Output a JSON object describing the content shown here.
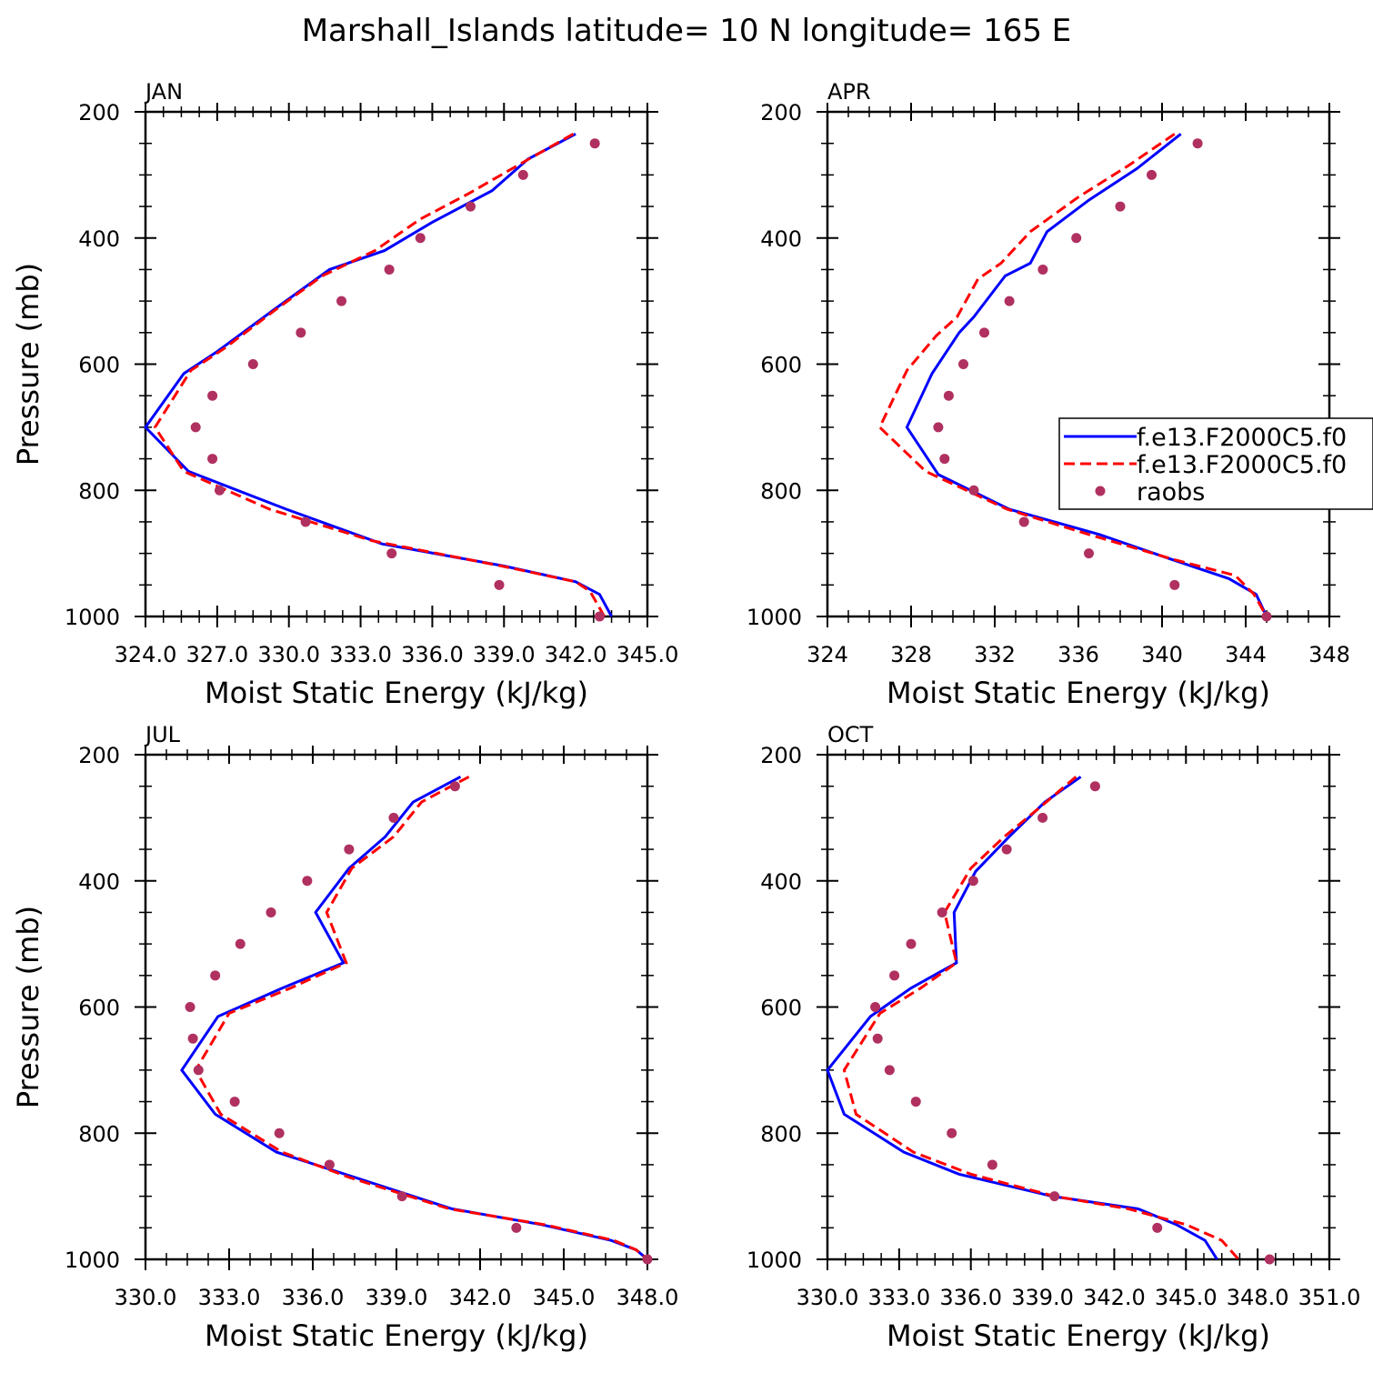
{
  "figure": {
    "title": "Marshall_Islands  latitude= 10 N longitude= 165 E"
  },
  "legend": {
    "entries": [
      "f.e13.F2000C5.f0",
      "f.e13.F2000C5.f0",
      "raobs"
    ],
    "colors": [
      "#0000ff",
      "#ff0000",
      "#b03060"
    ]
  },
  "chart_data": [
    {
      "type": "line",
      "panel": "JAN",
      "xlabel": "Moist Static Energy (kJ/kg)",
      "ylabel": "Pressure (mb)",
      "xlim": [
        324,
        345
      ],
      "xticks": [
        324,
        327,
        330,
        333,
        336,
        339,
        342,
        345
      ],
      "xtick_labels": [
        "324.0",
        "327.0",
        "330.0",
        "333.0",
        "336.0",
        "339.0",
        "342.0",
        "345.0"
      ],
      "ylim": [
        200,
        1000
      ],
      "yticks": [
        200,
        400,
        600,
        800,
        1000
      ],
      "ytick_labels": [
        "200",
        "400",
        "600",
        "800",
        "1000"
      ],
      "series": [
        {
          "name": "f.e13.F2000C5.f0",
          "style": "solid",
          "color": "#0000ff",
          "x": [
            342.0,
            340.0,
            338.5,
            336.0,
            334.0,
            331.7,
            329.5,
            327.0,
            325.6,
            324.0,
            325.8,
            329.9,
            333.9,
            339.0,
            342.0,
            343.0,
            343.5
          ],
          "y": [
            235,
            275,
            325,
            375,
            420,
            450,
            510,
            580,
            615,
            700,
            770,
            830,
            885,
            920,
            945,
            965,
            1000
          ]
        },
        {
          "name": "f.e13.F2000C5.f0",
          "style": "dashed",
          "color": "#ff0000",
          "x": [
            341.9,
            339.8,
            337.5,
            335.5,
            333.6,
            331.4,
            329.4,
            327.3,
            325.9,
            324.4,
            325.6,
            329.2,
            333.5,
            338.9,
            342.0,
            342.6,
            343.2
          ],
          "y": [
            235,
            280,
            330,
            370,
            420,
            460,
            515,
            575,
            610,
            700,
            770,
            830,
            880,
            920,
            945,
            960,
            1000
          ]
        },
        {
          "name": "raobs",
          "style": "markers",
          "color": "#b03060",
          "x": [
            342.8,
            339.8,
            337.6,
            335.5,
            334.2,
            332.2,
            330.5,
            328.5,
            326.8,
            326.1,
            326.8,
            327.1,
            330.7,
            334.3,
            338.8,
            343.0
          ],
          "y": [
            250,
            300,
            350,
            400,
            450,
            500,
            550,
            600,
            650,
            700,
            750,
            800,
            850,
            900,
            950,
            1000
          ]
        }
      ]
    },
    {
      "type": "line",
      "panel": "APR",
      "xlabel": "Moist Static Energy (kJ/kg)",
      "ylabel": "Pressure (mb)",
      "xlim": [
        324,
        348
      ],
      "xticks": [
        324,
        328,
        332,
        336,
        340,
        344,
        348
      ],
      "xtick_labels": [
        "324",
        "328",
        "332",
        "336",
        "340",
        "344",
        "348"
      ],
      "ylim": [
        200,
        1000
      ],
      "yticks": [
        200,
        400,
        600,
        800,
        1000
      ],
      "ytick_labels": [
        "200",
        "400",
        "600",
        "800",
        "1000"
      ],
      "series": [
        {
          "name": "f.e13.F2000C5.f0",
          "style": "solid",
          "color": "#0000ff",
          "x": [
            340.9,
            338.8,
            336.5,
            334.5,
            333.7,
            332.5,
            331.0,
            330.3,
            329.0,
            327.8,
            329.3,
            332.7,
            337.0,
            340.5,
            343.2,
            344.5,
            345.0
          ],
          "y": [
            235,
            290,
            340,
            390,
            440,
            460,
            525,
            550,
            615,
            700,
            775,
            830,
            870,
            910,
            940,
            965,
            1000
          ]
        },
        {
          "name": "f.e13.F2000C5.f0",
          "style": "dashed",
          "color": "#ff0000",
          "x": [
            340.6,
            338.4,
            336.0,
            333.7,
            332.3,
            331.2,
            330.2,
            329.2,
            327.8,
            326.5,
            328.7,
            332.6,
            336.5,
            340.6,
            343.5,
            344.4,
            345.0
          ],
          "y": [
            235,
            285,
            335,
            390,
            440,
            465,
            525,
            555,
            610,
            700,
            770,
            830,
            870,
            910,
            935,
            965,
            1000
          ]
        },
        {
          "name": "raobs",
          "style": "markers",
          "color": "#b03060",
          "x": [
            341.7,
            339.5,
            338.0,
            335.9,
            334.3,
            332.7,
            331.5,
            330.5,
            329.8,
            329.3,
            329.6,
            331.0,
            333.4,
            336.5,
            340.6,
            345.0
          ],
          "y": [
            250,
            300,
            350,
            400,
            450,
            500,
            550,
            600,
            650,
            700,
            750,
            800,
            850,
            900,
            950,
            1000
          ]
        }
      ]
    },
    {
      "type": "line",
      "panel": "JUL",
      "xlabel": "Moist Static Energy (kJ/kg)",
      "ylabel": "Pressure (mb)",
      "xlim": [
        330,
        348
      ],
      "xticks": [
        330,
        333,
        336,
        339,
        342,
        345,
        348
      ],
      "xtick_labels": [
        "330.0",
        "333.0",
        "336.0",
        "339.0",
        "342.0",
        "345.0",
        "348.0"
      ],
      "ylim": [
        200,
        1000
      ],
      "yticks": [
        200,
        400,
        600,
        800,
        1000
      ],
      "ytick_labels": [
        "200",
        "400",
        "600",
        "800",
        "1000"
      ],
      "series": [
        {
          "name": "f.e13.F2000C5.f0",
          "style": "solid",
          "color": "#0000ff",
          "x": [
            341.3,
            339.6,
            338.6,
            337.3,
            336.1,
            337.1,
            334.9,
            332.6,
            331.3,
            332.5,
            334.7,
            337.5,
            341.0,
            344.2,
            346.7,
            347.6,
            348.0
          ],
          "y": [
            235,
            275,
            330,
            380,
            450,
            530,
            570,
            615,
            700,
            770,
            830,
            870,
            920,
            945,
            970,
            985,
            1000
          ]
        },
        {
          "name": "f.e13.F2000C5.f0",
          "style": "dashed",
          "color": "#ff0000",
          "x": [
            341.6,
            339.9,
            338.9,
            337.4,
            336.5,
            337.2,
            335.2,
            333.0,
            331.8,
            332.7,
            334.9,
            337.3,
            340.9,
            344.3,
            346.8,
            347.6,
            348.0
          ],
          "y": [
            235,
            275,
            330,
            380,
            450,
            530,
            570,
            610,
            700,
            770,
            830,
            870,
            920,
            945,
            970,
            985,
            1000
          ]
        },
        {
          "name": "raobs",
          "style": "markers",
          "color": "#b03060",
          "x": [
            341.1,
            338.9,
            337.3,
            335.8,
            334.5,
            333.4,
            332.5,
            331.6,
            331.7,
            331.9,
            333.2,
            334.8,
            336.6,
            339.2,
            343.3,
            348.0
          ],
          "y": [
            250,
            300,
            350,
            400,
            450,
            500,
            550,
            600,
            650,
            700,
            750,
            800,
            850,
            900,
            950,
            1000
          ]
        }
      ]
    },
    {
      "type": "line",
      "panel": "OCT",
      "xlabel": "Moist Static Energy (kJ/kg)",
      "ylabel": "Pressure (mb)",
      "xlim": [
        330,
        351
      ],
      "xticks": [
        330,
        333,
        336,
        339,
        342,
        345,
        348,
        351
      ],
      "xtick_labels": [
        "330.0",
        "333.0",
        "336.0",
        "339.0",
        "342.0",
        "345.0",
        "348.0",
        "351.0"
      ],
      "ylim": [
        200,
        1000
      ],
      "yticks": [
        200,
        400,
        600,
        800,
        1000
      ],
      "ytick_labels": [
        "200",
        "400",
        "600",
        "800",
        "1000"
      ],
      "series": [
        {
          "name": "f.e13.F2000C5.f0",
          "style": "solid",
          "color": "#0000ff",
          "x": [
            340.6,
            339.1,
            337.6,
            336.2,
            335.3,
            335.4,
            333.5,
            331.8,
            330.0,
            330.7,
            333.2,
            335.5,
            339.4,
            343.0,
            344.6,
            345.8,
            346.3
          ],
          "y": [
            235,
            275,
            330,
            385,
            450,
            530,
            570,
            615,
            700,
            770,
            830,
            865,
            900,
            920,
            945,
            970,
            1000
          ]
        },
        {
          "name": "f.e13.F2000C5.f0",
          "style": "dashed",
          "color": "#ff0000",
          "x": [
            340.4,
            339.0,
            337.4,
            336.0,
            334.9,
            335.4,
            333.9,
            332.2,
            330.7,
            331.2,
            333.6,
            336.0,
            339.5,
            342.6,
            345.0,
            346.5,
            347.2
          ],
          "y": [
            235,
            280,
            330,
            380,
            450,
            530,
            570,
            610,
            700,
            770,
            830,
            865,
            900,
            920,
            945,
            970,
            1000
          ]
        },
        {
          "name": "raobs",
          "style": "markers",
          "color": "#b03060",
          "x": [
            341.2,
            339.0,
            337.5,
            336.1,
            334.8,
            333.5,
            332.8,
            332.0,
            332.1,
            332.6,
            333.7,
            335.2,
            336.9,
            339.5,
            343.8,
            348.5
          ],
          "y": [
            250,
            300,
            350,
            400,
            450,
            500,
            550,
            600,
            650,
            700,
            750,
            800,
            850,
            900,
            950,
            1000
          ]
        }
      ]
    }
  ]
}
